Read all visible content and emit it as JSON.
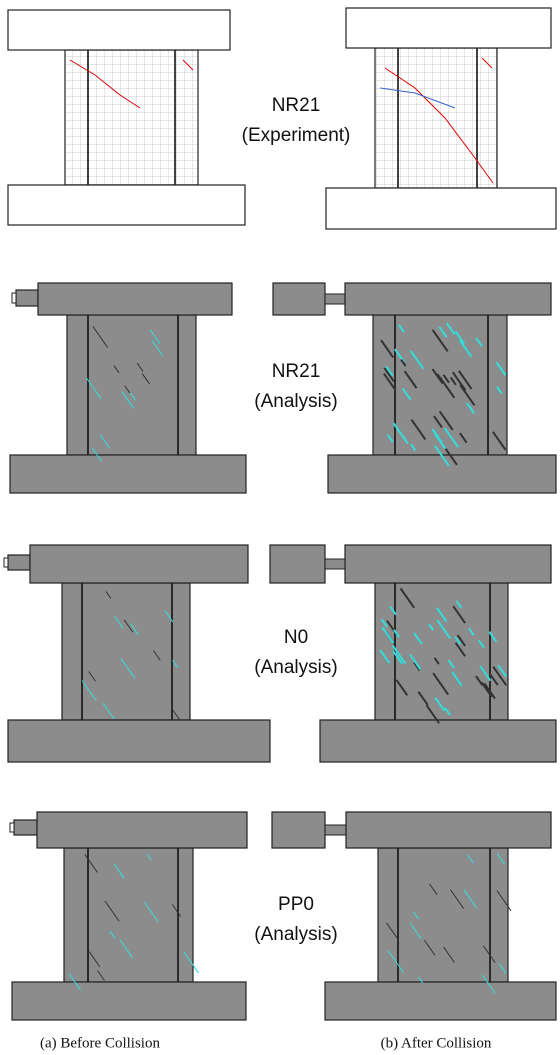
{
  "rows": [
    {
      "specimen": "NR21",
      "method": "(Experiment)"
    },
    {
      "specimen": "NR21",
      "method": "(Analysis)"
    },
    {
      "specimen": "N0",
      "method": "(Analysis)"
    },
    {
      "specimen": "PP0",
      "method": "(Analysis)"
    }
  ],
  "captions": [
    "(a) Before Collision",
    "(b) After Collision"
  ]
}
